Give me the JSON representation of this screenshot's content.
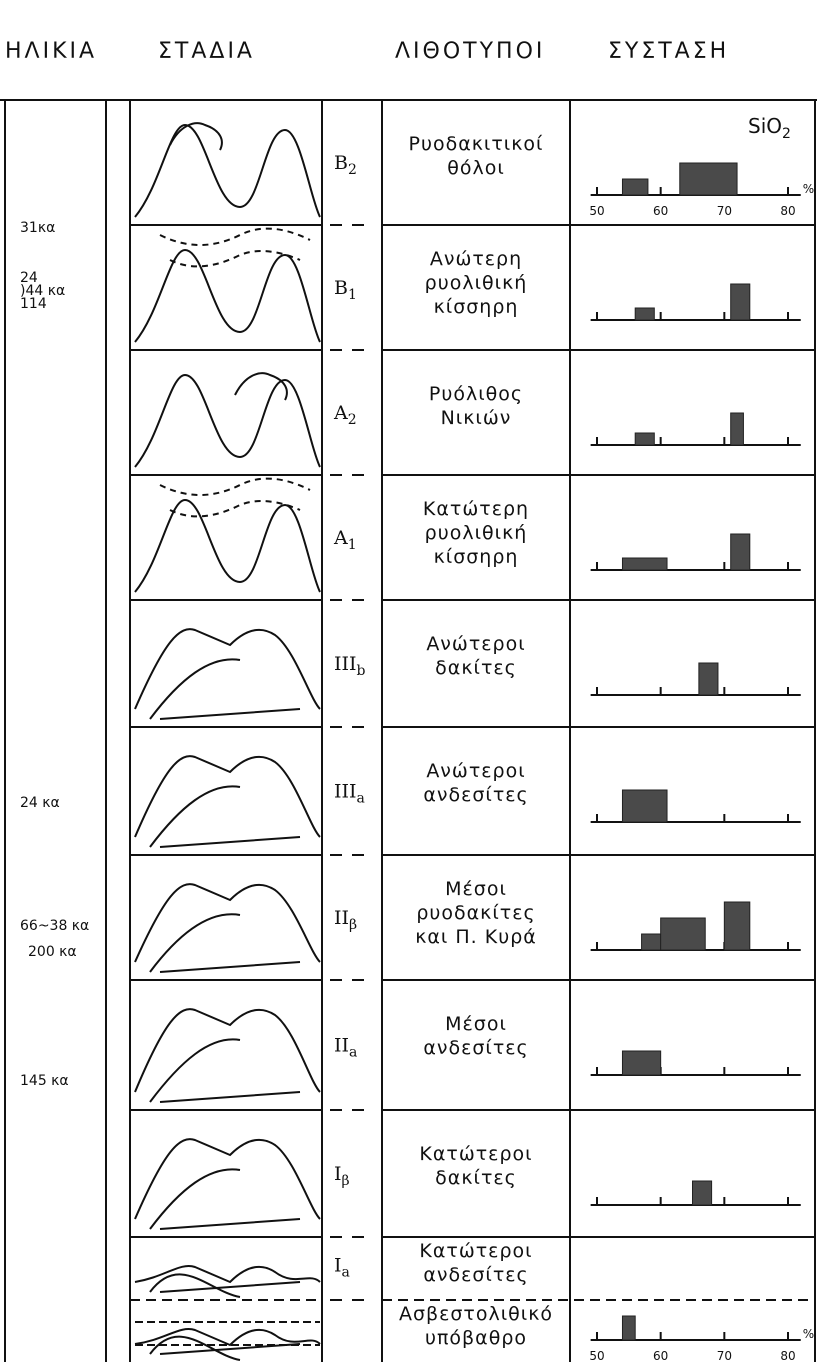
{
  "header": {
    "age": "ΗΛΙΚΙΑ",
    "stages": "ΣΤΑΔΙΑ",
    "lithotypes": "ΛΙΘΟΤΥΠΟΙ",
    "composition": "ΣΥΣΤΑΣΗ"
  },
  "composition_axis": {
    "label": "SiO2",
    "unit": "%",
    "xlim": [
      49,
      82
    ],
    "xticks": [
      50,
      60,
      70,
      80
    ]
  },
  "ages": [
    {
      "text": "31κα",
      "row": 0
    },
    {
      "text": "24",
      "row": 1
    },
    {
      "text": ")44 κα",
      "row": 1
    },
    {
      "text": "114",
      "row": 1
    },
    {
      "text": "24 κα",
      "row": 5
    },
    {
      "text": "66~38 κα",
      "row": 6
    },
    {
      "text": "200 κα",
      "row": 6
    },
    {
      "text": "145 κα",
      "row": 7
    }
  ],
  "rows": [
    {
      "stage": {
        "main": "B",
        "sub": "2"
      },
      "lithotype": [
        "Ρυοδακιτικοί",
        "θόλοι"
      ],
      "bars": [
        {
          "range": [
            54,
            58
          ],
          "height": 4
        },
        {
          "range": [
            63,
            72
          ],
          "height": 8
        }
      ]
    },
    {
      "stage": {
        "main": "B",
        "sub": "1"
      },
      "lithotype": [
        "Ανώτερη",
        "ρυολιθική",
        "κίσσηρη"
      ],
      "bars": [
        {
          "range": [
            56,
            59
          ],
          "height": 3
        },
        {
          "range": [
            71,
            74
          ],
          "height": 9
        }
      ]
    },
    {
      "stage": {
        "main": "A",
        "sub": "2"
      },
      "lithotype": [
        "Ρυόλιθος",
        "Νικιών"
      ],
      "bars": [
        {
          "range": [
            56,
            59
          ],
          "height": 3
        },
        {
          "range": [
            71,
            73
          ],
          "height": 8
        }
      ]
    },
    {
      "stage": {
        "main": "A",
        "sub": "1"
      },
      "lithotype": [
        "Κατώτερη",
        "ρυολιθική",
        "κίσσηρη"
      ],
      "bars": [
        {
          "range": [
            54,
            61
          ],
          "height": 3
        },
        {
          "range": [
            71,
            74
          ],
          "height": 9
        }
      ]
    },
    {
      "stage": {
        "main": "III",
        "sub": "b"
      },
      "lithotype": [
        "Ανώτεροι",
        "δακίτες"
      ],
      "bars": [
        {
          "range": [
            66,
            69
          ],
          "height": 8
        }
      ]
    },
    {
      "stage": {
        "main": "III",
        "sub": "a"
      },
      "lithotype": [
        "Ανώτεροι",
        "ανδεσίτες"
      ],
      "bars": [
        {
          "range": [
            54,
            61
          ],
          "height": 8
        }
      ]
    },
    {
      "stage": {
        "main": "II",
        "sub": "β"
      },
      "lithotype": [
        "Μέσοι",
        "ρυοδακίτες",
        "και Π. Κυρά"
      ],
      "bars": [
        {
          "range": [
            57,
            60
          ],
          "height": 4
        },
        {
          "range": [
            60,
            67
          ],
          "height": 8
        },
        {
          "range": [
            70,
            74
          ],
          "height": 12
        }
      ]
    },
    {
      "stage": {
        "main": "II",
        "sub": "a"
      },
      "lithotype": [
        "Μέσοι",
        "ανδεσίτες"
      ],
      "bars": [
        {
          "range": [
            54,
            60
          ],
          "height": 6
        }
      ]
    },
    {
      "stage": {
        "main": "I",
        "sub": "β"
      },
      "lithotype": [
        "Κατώτεροι",
        "δακίτες"
      ],
      "bars": [
        {
          "range": [
            65,
            68
          ],
          "height": 6
        }
      ]
    },
    {
      "stage": {
        "main": "I",
        "sub": "a"
      },
      "lithotype": [
        "Κατώτεροι",
        "ανδεσίτες"
      ],
      "bars": []
    },
    {
      "stage": null,
      "lithotype": [
        "Ασβεστολιθικό",
        "υπόβαθρο"
      ],
      "bars": [
        {
          "range": [
            54,
            56
          ],
          "height": 6
        }
      ]
    }
  ]
}
